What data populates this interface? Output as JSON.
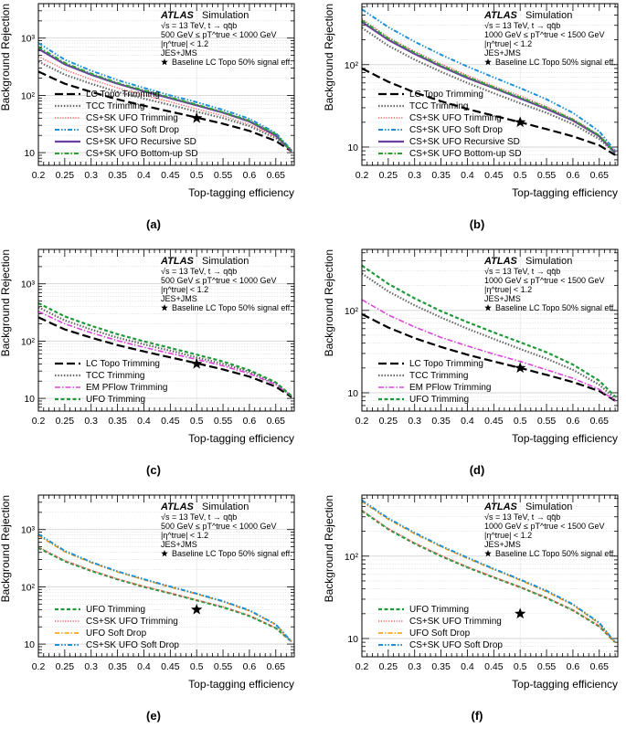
{
  "chart_data": [
    {
      "type": "line",
      "panel_label": "(a)",
      "atlas_label": "ATLAS",
      "sim_label": "Simulation",
      "info_lines": [
        "√s = 13 TeV, t → qq̄b",
        "500 GeV ≤ pT^true < 1000 GeV",
        "|η^true| < 1.2",
        "JES+JMS"
      ],
      "star_label": "Baseline LC Topo 50% signal eff.",
      "xlabel": "Top-tagging efficiency",
      "ylabel": "Background Rejection",
      "xlim": [
        0.2,
        0.685
      ],
      "ylim": [
        6,
        4000
      ],
      "yscale": "log",
      "xticks": [
        0.2,
        0.25,
        0.3,
        0.35,
        0.4,
        0.45,
        0.5,
        0.55,
        0.6,
        0.65
      ],
      "yticks": [
        10,
        100,
        1000
      ],
      "yticklabels": [
        "10",
        "10²",
        "10³"
      ],
      "legend_position": "lower-left",
      "star": {
        "x": 0.5,
        "y": 40
      },
      "x": [
        0.2,
        0.25,
        0.3,
        0.35,
        0.4,
        0.45,
        0.5,
        0.55,
        0.6,
        0.65,
        0.68
      ],
      "series": [
        {
          "name": "LC Topo Trimming",
          "style": "lc",
          "values": [
            260,
            160,
            115,
            85,
            66,
            52,
            41,
            32,
            24,
            16,
            10.5
          ]
        },
        {
          "name": "TCC Trimming",
          "style": "tcc",
          "values": [
            390,
            230,
            160,
            115,
            88,
            68,
            52,
            40,
            29,
            18,
            11
          ]
        },
        {
          "name": "CS+SK UFO Trimming",
          "style": "cssktrim",
          "values": [
            480,
            280,
            190,
            135,
            100,
            77,
            58,
            44,
            31,
            19,
            11
          ]
        },
        {
          "name": "CS+SK UFO Soft Drop",
          "style": "csskdrop",
          "values": [
            820,
            420,
            270,
            185,
            135,
            100,
            76,
            56,
            39,
            22,
            11
          ]
        },
        {
          "name": "CS+SK UFO Recursive SD",
          "style": "recsd",
          "values": [
            650,
            350,
            230,
            160,
            118,
            89,
            67,
            50,
            35,
            20,
            10.5
          ]
        },
        {
          "name": "CS+SK UFO Bottom-up SD",
          "style": "botsd",
          "values": [
            700,
            370,
            240,
            165,
            122,
            92,
            69,
            51,
            36,
            21,
            10.5
          ]
        }
      ]
    },
    {
      "type": "line",
      "panel_label": "(b)",
      "atlas_label": "ATLAS",
      "sim_label": "Simulation",
      "info_lines": [
        "√s = 13 TeV, t → qq̄b",
        "1000 GeV ≤ pT^true < 1500 GeV",
        "|η^true| < 1.2",
        "JES+JMS"
      ],
      "star_label": "Baseline LC Topo 50% signal eff.",
      "xlabel": "Top-tagging efficiency",
      "ylabel": "Background Rejection",
      "xlim": [
        0.2,
        0.685
      ],
      "ylim": [
        6,
        550
      ],
      "yscale": "log",
      "xticks": [
        0.2,
        0.25,
        0.3,
        0.35,
        0.4,
        0.45,
        0.5,
        0.55,
        0.6,
        0.65
      ],
      "yticks": [
        10,
        100
      ],
      "yticklabels": [
        "10",
        "10²"
      ],
      "legend_position": "lower-left",
      "star": {
        "x": 0.5,
        "y": 20
      },
      "x": [
        0.2,
        0.25,
        0.3,
        0.35,
        0.4,
        0.45,
        0.5,
        0.55,
        0.6,
        0.65,
        0.68
      ],
      "series": [
        {
          "name": "LC Topo Trimming",
          "style": "lc",
          "values": [
            90,
            62,
            46,
            36,
            29,
            24,
            20,
            16.5,
            13.5,
            10.5,
            8
          ]
        },
        {
          "name": "TCC Trimming",
          "style": "tcc",
          "values": [
            280,
            170,
            115,
            82,
            60,
            45,
            34,
            26,
            19,
            12.5,
            8.5
          ]
        },
        {
          "name": "CS+SK UFO Trimming",
          "style": "cssktrim",
          "values": [
            360,
            215,
            145,
            102,
            74,
            55,
            42,
            31,
            22,
            14,
            9
          ]
        },
        {
          "name": "CS+SK UFO Soft Drop",
          "style": "csskdrop",
          "values": [
            470,
            285,
            190,
            132,
            95,
            70,
            52,
            38,
            26,
            15.5,
            9
          ]
        },
        {
          "name": "CS+SK UFO Recursive SD",
          "style": "recsd",
          "values": [
            330,
            200,
            135,
            95,
            69,
            52,
            39,
            29,
            21,
            13.5,
            8.5
          ]
        },
        {
          "name": "CS+SK UFO Bottom-up SD",
          "style": "botsd",
          "values": [
            345,
            208,
            140,
            98,
            71,
            53,
            40,
            30,
            21.5,
            13.8,
            8.5
          ]
        }
      ]
    },
    {
      "type": "line",
      "panel_label": "(c)",
      "atlas_label": "ATLAS",
      "sim_label": "Simulation",
      "info_lines": [
        "√s = 13 TeV, t → qq̄b",
        "500 GeV ≤ pT^true < 1000 GeV",
        "|η^true| < 1.2",
        "JES+JMS"
      ],
      "star_label": "Baseline LC Topo 50% signal eff.",
      "xlabel": "Top-tagging efficiency",
      "ylabel": "Background Rejection",
      "xlim": [
        0.2,
        0.685
      ],
      "ylim": [
        6,
        4000
      ],
      "yscale": "log",
      "xticks": [
        0.2,
        0.25,
        0.3,
        0.35,
        0.4,
        0.45,
        0.5,
        0.55,
        0.6,
        0.65
      ],
      "yticks": [
        10,
        100,
        1000
      ],
      "yticklabels": [
        "10",
        "10²",
        "10³"
      ],
      "legend_position": "lower-left",
      "star": {
        "x": 0.5,
        "y": 40
      },
      "x": [
        0.2,
        0.25,
        0.3,
        0.35,
        0.4,
        0.45,
        0.5,
        0.55,
        0.6,
        0.65,
        0.68
      ],
      "series": [
        {
          "name": "LC Topo Trimming",
          "style": "lc",
          "values": [
            260,
            160,
            115,
            85,
            66,
            52,
            41,
            32,
            24,
            16,
            10.5
          ]
        },
        {
          "name": "TCC Trimming",
          "style": "tcc",
          "values": [
            390,
            230,
            160,
            115,
            88,
            68,
            52,
            40,
            29,
            18,
            11
          ]
        },
        {
          "name": "EM PFlow Trimming",
          "style": "pflow",
          "values": [
            330,
            200,
            140,
            102,
            78,
            61,
            48,
            37,
            27,
            17.5,
            11
          ]
        },
        {
          "name": "UFO Trimming",
          "style": "ufo",
          "values": [
            460,
            270,
            185,
            132,
            99,
            76,
            58,
            44,
            31,
            19,
            11
          ]
        }
      ]
    },
    {
      "type": "line",
      "panel_label": "(d)",
      "atlas_label": "ATLAS",
      "sim_label": "Simulation",
      "info_lines": [
        "√s = 13 TeV, t → qq̄b",
        "1000 GeV ≤ pT^true < 1500 GeV",
        "|η^true| < 1.2",
        "JES+JMS"
      ],
      "star_label": "Baseline LC Topo 50% signal eff.",
      "xlabel": "Top-tagging efficiency",
      "ylabel": "Background Rejection",
      "xlim": [
        0.2,
        0.685
      ],
      "ylim": [
        6,
        550
      ],
      "yscale": "log",
      "xticks": [
        0.2,
        0.25,
        0.3,
        0.35,
        0.4,
        0.45,
        0.5,
        0.55,
        0.6,
        0.65
      ],
      "yticks": [
        10,
        100
      ],
      "yticklabels": [
        "10",
        "10²"
      ],
      "legend_position": "lower-left",
      "star": {
        "x": 0.5,
        "y": 20
      },
      "x": [
        0.2,
        0.25,
        0.3,
        0.35,
        0.4,
        0.45,
        0.5,
        0.55,
        0.6,
        0.65,
        0.68
      ],
      "series": [
        {
          "name": "LC Topo Trimming",
          "style": "lc",
          "values": [
            90,
            62,
            46,
            36,
            29,
            24,
            20,
            16.5,
            13.5,
            10.5,
            8
          ]
        },
        {
          "name": "TCC Trimming",
          "style": "tcc",
          "values": [
            280,
            170,
            115,
            82,
            60,
            45,
            34,
            26,
            19,
            12.5,
            8.5
          ]
        },
        {
          "name": "EM PFlow Trimming",
          "style": "pflow",
          "values": [
            135,
            88,
            63,
            47,
            37,
            29.5,
            24,
            19,
            15,
            11,
            8
          ]
        },
        {
          "name": "UFO Trimming",
          "style": "ufo",
          "values": [
            350,
            210,
            140,
            98,
            72,
            54,
            41,
            31,
            22,
            14,
            9
          ]
        }
      ]
    },
    {
      "type": "line",
      "panel_label": "(e)",
      "atlas_label": "ATLAS",
      "sim_label": "Simulation",
      "info_lines": [
        "√s = 13 TeV, t → qq̄b",
        "500 GeV ≤ pT^true < 1000 GeV",
        "|η^true| < 1.2",
        "JES+JMS"
      ],
      "star_label": "Baseline LC Topo 50% signal eff.",
      "xlabel": "Top-tagging efficiency",
      "ylabel": "Background Rejection",
      "xlim": [
        0.2,
        0.685
      ],
      "ylim": [
        6,
        4000
      ],
      "yscale": "log",
      "xticks": [
        0.2,
        0.25,
        0.3,
        0.35,
        0.4,
        0.45,
        0.5,
        0.55,
        0.6,
        0.65
      ],
      "yticks": [
        10,
        100,
        1000
      ],
      "yticklabels": [
        "10",
        "10²",
        "10³"
      ],
      "legend_position": "lower-left",
      "star": {
        "x": 0.5,
        "y": 40
      },
      "x": [
        0.2,
        0.25,
        0.3,
        0.35,
        0.4,
        0.45,
        0.5,
        0.55,
        0.6,
        0.65,
        0.68
      ],
      "series": [
        {
          "name": "UFO Trimming",
          "style": "ufo",
          "values": [
            480,
            280,
            190,
            135,
            100,
            77,
            58,
            44,
            31,
            19,
            11
          ]
        },
        {
          "name": "CS+SK UFO Trimming",
          "style": "cssktrim",
          "values": [
            495,
            288,
            195,
            138,
            102,
            78,
            59,
            45,
            31.5,
            19.2,
            11
          ]
        },
        {
          "name": "UFO Soft Drop",
          "style": "ufodrop",
          "values": [
            790,
            410,
            265,
            182,
            133,
            99,
            75,
            55,
            38,
            22,
            11
          ]
        },
        {
          "name": "CS+SK UFO Soft Drop",
          "style": "csskdrop",
          "values": [
            830,
            425,
            272,
            186,
            136,
            101,
            76,
            56,
            39,
            22,
            11
          ]
        }
      ]
    },
    {
      "type": "line",
      "panel_label": "(f)",
      "atlas_label": "ATLAS",
      "sim_label": "Simulation",
      "info_lines": [
        "√s = 13 TeV, t → qq̄b",
        "1000 GeV ≤ pT^true < 1500 GeV",
        "|η^true| < 1.2",
        "JES+JMS"
      ],
      "star_label": "Baseline LC Topo 50% signal eff.",
      "xlabel": "Top-tagging efficiency",
      "ylabel": "Background Rejection",
      "xlim": [
        0.2,
        0.685
      ],
      "ylim": [
        6,
        550
      ],
      "yscale": "log",
      "xticks": [
        0.2,
        0.25,
        0.3,
        0.35,
        0.4,
        0.45,
        0.5,
        0.55,
        0.6,
        0.65
      ],
      "yticks": [
        10,
        100
      ],
      "yticklabels": [
        "10",
        "10²"
      ],
      "legend_position": "lower-left",
      "star": {
        "x": 0.5,
        "y": 20
      },
      "x": [
        0.2,
        0.25,
        0.3,
        0.35,
        0.4,
        0.45,
        0.5,
        0.55,
        0.6,
        0.65,
        0.68
      ],
      "series": [
        {
          "name": "UFO Trimming",
          "style": "ufo",
          "values": [
            355,
            212,
            142,
            100,
            73,
            55,
            42,
            31,
            22,
            14,
            9
          ]
        },
        {
          "name": "CS+SK UFO Trimming",
          "style": "cssktrim",
          "values": [
            362,
            216,
            145,
            102,
            74,
            56,
            42,
            31.5,
            22.2,
            14.2,
            9
          ]
        },
        {
          "name": "UFO Soft Drop",
          "style": "ufodrop",
          "values": [
            460,
            280,
            187,
            130,
            94,
            69,
            51,
            37,
            25.5,
            15.2,
            9
          ]
        },
        {
          "name": "CS+SK UFO Soft Drop",
          "style": "csskdrop",
          "values": [
            475,
            288,
            192,
            133,
            96,
            70,
            52,
            38,
            26,
            15.5,
            9
          ]
        }
      ]
    }
  ],
  "styles": {
    "lc": {
      "color": "#000000",
      "dash": "9,4",
      "width": 2.2
    },
    "tcc": {
      "color": "#666666",
      "dash": "1.5,1.8",
      "width": 2.2
    },
    "cssktrim": {
      "color": "#ff5a5a",
      "dash": "1.2,1.6",
      "width": 1.4
    },
    "csskdrop": {
      "color": "#1f8fd6",
      "dash": "5,2,1.5,2,1.5,2",
      "width": 2
    },
    "recsd": {
      "color": "#6b3fa0",
      "dash": "",
      "width": 2.2
    },
    "botsd": {
      "color": "#2ca02c",
      "dash": "5,2,1.5,2",
      "width": 2
    },
    "pflow": {
      "color": "#dd44dd",
      "dash": "6,2,1.5,2",
      "width": 1.6
    },
    "ufo": {
      "color": "#1f9a3a",
      "dash": "4,2.5",
      "width": 2.2
    },
    "ufodrop": {
      "color": "#ff9900",
      "dash": "5,2,1.5,2",
      "width": 1.6
    }
  }
}
